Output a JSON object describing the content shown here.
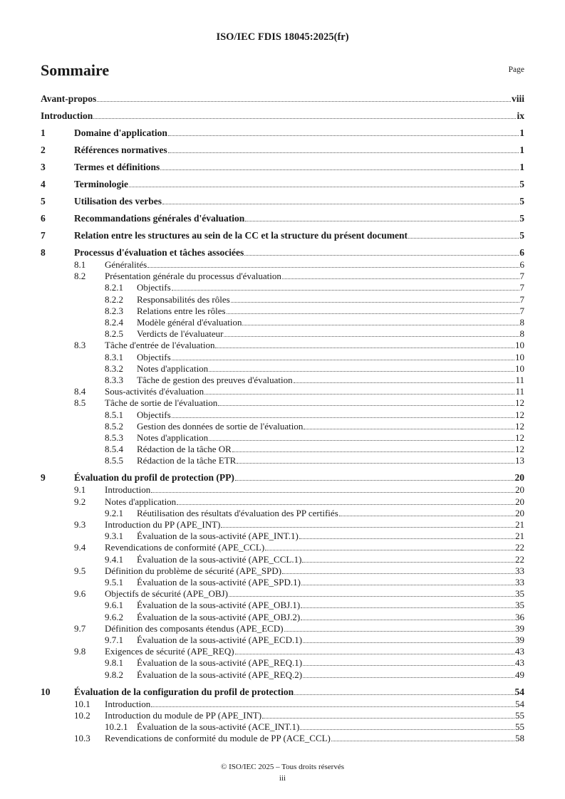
{
  "header": "ISO/IEC FDIS 18045:2025(fr)",
  "title": "Sommaire",
  "page_label": "Page",
  "toc": [
    {
      "level": 0,
      "num": "",
      "title": "Avant-propos",
      "page": "viii"
    },
    {
      "level": 0,
      "num": "",
      "title": "Introduction",
      "page": "ix"
    },
    {
      "level": 1,
      "num": "1",
      "title": "Domaine d'application",
      "page": "1"
    },
    {
      "level": 1,
      "num": "2",
      "title": "Références normatives",
      "page": "1"
    },
    {
      "level": 1,
      "num": "3",
      "title": "Termes et définitions",
      "page": "1"
    },
    {
      "level": 1,
      "num": "4",
      "title": "Terminologie",
      "page": "5"
    },
    {
      "level": 1,
      "num": "5",
      "title": "Utilisation des verbes",
      "page": "5"
    },
    {
      "level": 1,
      "num": "6",
      "title": "Recommandations générales d'évaluation",
      "page": "5"
    },
    {
      "level": 1,
      "num": "7",
      "title": "Relation entre les structures au sein de la CC et la structure du présent document",
      "page": "5"
    },
    {
      "level": 1,
      "num": "8",
      "title": "Processus d'évaluation et tâches associées",
      "page": "6"
    },
    {
      "level": 2,
      "num": "8.1",
      "title": "Généralités",
      "page": "6"
    },
    {
      "level": 2,
      "num": "8.2",
      "title": "Présentation générale du processus d'évaluation",
      "page": "7"
    },
    {
      "level": 3,
      "num": "8.2.1",
      "title": "Objectifs",
      "page": "7"
    },
    {
      "level": 3,
      "num": "8.2.2",
      "title": "Responsabilités des rôles",
      "page": "7"
    },
    {
      "level": 3,
      "num": "8.2.3",
      "title": "Relations entre les rôles",
      "page": "7"
    },
    {
      "level": 3,
      "num": "8.2.4",
      "title": "Modèle général d'évaluation",
      "page": "8"
    },
    {
      "level": 3,
      "num": "8.2.5",
      "title": "Verdicts de l'évaluateur",
      "page": "8"
    },
    {
      "level": 2,
      "num": "8.3",
      "title": "Tâche d'entrée de l'évaluation",
      "page": "10"
    },
    {
      "level": 3,
      "num": "8.3.1",
      "title": "Objectifs",
      "page": "10"
    },
    {
      "level": 3,
      "num": "8.3.2",
      "title": "Notes d'application",
      "page": "10"
    },
    {
      "level": 3,
      "num": "8.3.3",
      "title": "Tâche de gestion des preuves d'évaluation",
      "page": "11"
    },
    {
      "level": 2,
      "num": "8.4",
      "title": "Sous-activités d'évaluation",
      "page": "11"
    },
    {
      "level": 2,
      "num": "8.5",
      "title": "Tâche de sortie de l'évaluation",
      "page": "12"
    },
    {
      "level": 3,
      "num": "8.5.1",
      "title": "Objectifs",
      "page": "12"
    },
    {
      "level": 3,
      "num": "8.5.2",
      "title": "Gestion des données de sortie de l'évaluation",
      "page": "12"
    },
    {
      "level": 3,
      "num": "8.5.3",
      "title": "Notes d'application",
      "page": "12"
    },
    {
      "level": 3,
      "num": "8.5.4",
      "title": "Rédaction de la tâche OR",
      "page": "12"
    },
    {
      "level": 3,
      "num": "8.5.5",
      "title": "Rédaction de la tâche ETR",
      "page": "13"
    },
    {
      "level": 1,
      "num": "9",
      "title": "Évaluation du profil de protection (PP)",
      "page": "20"
    },
    {
      "level": 2,
      "num": "9.1",
      "title": "Introduction",
      "page": "20"
    },
    {
      "level": 2,
      "num": "9.2",
      "title": "Notes d'application",
      "page": "20"
    },
    {
      "level": 3,
      "num": "9.2.1",
      "title": "Réutilisation des résultats d'évaluation des PP certifiés",
      "page": "20"
    },
    {
      "level": 2,
      "num": "9.3",
      "title": "Introduction du PP (APE_INT)",
      "page": "21"
    },
    {
      "level": 3,
      "num": "9.3.1",
      "title": "Évaluation de la sous-activité (APE_INT.1)",
      "page": "21"
    },
    {
      "level": 2,
      "num": "9.4",
      "title": "Revendications de conformité (APE_CCL)",
      "page": "22"
    },
    {
      "level": 3,
      "num": "9.4.1",
      "title": "Évaluation de la sous-activité (APE_CCL.1)",
      "page": "22"
    },
    {
      "level": 2,
      "num": "9.5",
      "title": "Définition du problème de sécurité (APE_SPD)",
      "page": "33"
    },
    {
      "level": 3,
      "num": "9.5.1",
      "title": "Évaluation de la sous-activité (APE_SPD.1)",
      "page": "33"
    },
    {
      "level": 2,
      "num": "9.6",
      "title": "Objectifs de sécurité (APE_OBJ)",
      "page": "35"
    },
    {
      "level": 3,
      "num": "9.6.1",
      "title": "Évaluation de la sous-activité (APE_OBJ.1)",
      "page": "35"
    },
    {
      "level": 3,
      "num": "9.6.2",
      "title": "Évaluation de la sous-activité (APE_OBJ.2)",
      "page": "36"
    },
    {
      "level": 2,
      "num": "9.7",
      "title": "Définition des composants étendus (APE_ECD)",
      "page": "39"
    },
    {
      "level": 3,
      "num": "9.7.1",
      "title": "Évaluation de la sous-activité (APE_ECD.1)",
      "page": "39"
    },
    {
      "level": 2,
      "num": "9.8",
      "title": "Exigences de sécurité (APE_REQ)",
      "page": "43"
    },
    {
      "level": 3,
      "num": "9.8.1",
      "title": "Évaluation de la sous-activité (APE_REQ.1)",
      "page": "43"
    },
    {
      "level": 3,
      "num": "9.8.2",
      "title": "Évaluation de la sous-activité (APE_REQ.2)",
      "page": "49"
    },
    {
      "level": 1,
      "num": "10",
      "title": "Évaluation de la configuration du profil de protection",
      "page": "54"
    },
    {
      "level": 2,
      "num": "10.1",
      "title": "Introduction",
      "page": "54"
    },
    {
      "level": 2,
      "num": "10.2",
      "title": "Introduction du module de PP (APE_INT)",
      "page": "55"
    },
    {
      "level": 3,
      "num": "10.2.1",
      "title": "Évaluation de la sous-activité (ACE_INT.1)",
      "page": "55"
    },
    {
      "level": 2,
      "num": "10.3",
      "title": "Revendications de conformité du module de PP (ACE_CCL)",
      "page": "58"
    }
  ],
  "footer": {
    "copyright": "© ISO/IEC 2025 – Tous droits réservés",
    "page_number": "iii"
  }
}
